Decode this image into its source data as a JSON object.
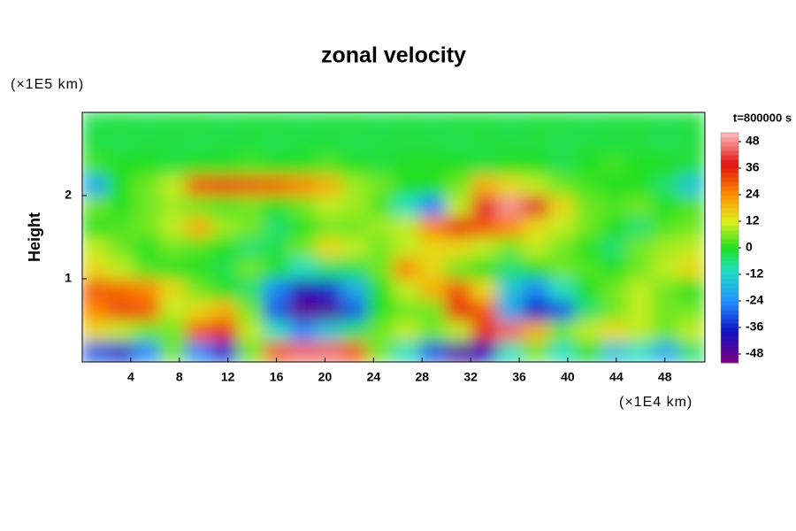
{
  "chart_data": {
    "type": "heatmap",
    "title": "zonal velocity",
    "y_unit": "(×1E5 km)",
    "x_unit": "(×1E4 km)",
    "ylabel": "Height",
    "time_label": "t=800000 s",
    "xlim": [
      0,
      51.3
    ],
    "ylim": [
      0,
      3
    ],
    "xticks": [
      4,
      8,
      12,
      16,
      20,
      24,
      28,
      32,
      36,
      40,
      44,
      48
    ],
    "yticks": [
      1,
      2
    ],
    "clim": [
      -52,
      52
    ],
    "cticks": [
      -48,
      -36,
      -24,
      -12,
      0,
      12,
      24,
      36,
      48
    ],
    "colormap": [
      [
        "#800080",
        -52
      ],
      [
        "#1010c0",
        -38
      ],
      [
        "#2090ff",
        -24
      ],
      [
        "#20e0c0",
        -10
      ],
      [
        "#20e020",
        0
      ],
      [
        "#e0f020",
        12
      ],
      [
        "#ff9000",
        24
      ],
      [
        "#e01010",
        38
      ],
      [
        "#ffc0c0",
        52
      ]
    ],
    "x": [
      1.07,
      3.21,
      5.34,
      7.48,
      9.62,
      11.76,
      13.89,
      16.03,
      18.17,
      20.31,
      22.44,
      24.58,
      26.72,
      28.86,
      30.99,
      33.13,
      35.27,
      37.41,
      39.54,
      41.68,
      43.82,
      45.96,
      48.09,
      50.23
    ],
    "y": [
      0.125,
      0.375,
      0.625,
      0.875,
      1.125,
      1.375,
      1.625,
      1.875,
      2.125,
      2.375,
      2.625,
      2.875
    ],
    "z": [
      [
        -30,
        -35,
        -25,
        5,
        -25,
        -35,
        5,
        30,
        45,
        45,
        30,
        5,
        -10,
        -30,
        -45,
        -40,
        -10,
        5,
        -10,
        0,
        -15,
        -10,
        -20,
        -5
      ],
      [
        15,
        10,
        5,
        5,
        30,
        35,
        10,
        -10,
        -25,
        -15,
        -5,
        5,
        10,
        5,
        10,
        35,
        45,
        20,
        5,
        10,
        15,
        10,
        5,
        10
      ],
      [
        25,
        32,
        30,
        10,
        15,
        20,
        5,
        -30,
        -48,
        -46,
        -30,
        0,
        5,
        5,
        35,
        30,
        -20,
        -38,
        -30,
        -5,
        5,
        10,
        5,
        5
      ],
      [
        30,
        28,
        25,
        15,
        5,
        0,
        -5,
        -25,
        -40,
        -35,
        -20,
        0,
        10,
        20,
        30,
        15,
        -15,
        -25,
        -10,
        0,
        5,
        10,
        5,
        0
      ],
      [
        15,
        10,
        3,
        0,
        0,
        -3,
        5,
        0,
        -10,
        -5,
        -3,
        5,
        25,
        15,
        5,
        0,
        -5,
        0,
        5,
        3,
        0,
        5,
        10,
        15
      ],
      [
        10,
        5,
        0,
        5,
        3,
        0,
        -5,
        -3,
        5,
        15,
        10,
        5,
        10,
        15,
        15,
        10,
        5,
        10,
        5,
        0,
        -5,
        5,
        8,
        10
      ],
      [
        0,
        3,
        5,
        10,
        20,
        8,
        5,
        -5,
        0,
        5,
        5,
        8,
        10,
        25,
        35,
        30,
        25,
        15,
        10,
        5,
        0,
        -5,
        3,
        5
      ],
      [
        5,
        0,
        5,
        8,
        5,
        3,
        5,
        0,
        5,
        10,
        8,
        3,
        -10,
        -25,
        10,
        40,
        48,
        40,
        15,
        5,
        3,
        5,
        0,
        3
      ],
      [
        -20,
        0,
        5,
        10,
        30,
        32,
        30,
        28,
        25,
        20,
        8,
        5,
        0,
        0,
        5,
        20,
        15,
        10,
        5,
        2,
        0,
        0,
        -5,
        -15
      ],
      [
        2,
        0,
        0,
        -2,
        0,
        0,
        2,
        0,
        0,
        3,
        0,
        -2,
        0,
        0,
        0,
        -2,
        0,
        0,
        -3,
        0,
        2,
        0,
        0,
        -2
      ],
      [
        -2,
        -3,
        -2,
        -2,
        -3,
        -2,
        -2,
        -3,
        -2,
        -2,
        -3,
        -2,
        -2,
        -2,
        -3,
        -2,
        -2,
        -2,
        -3,
        -2,
        -2,
        -2,
        -3,
        -2
      ],
      [
        -3,
        -2,
        -3,
        -2,
        -2,
        -3,
        -2,
        -2,
        -3,
        -2,
        -2,
        -3,
        -2,
        -3,
        -2,
        -2,
        -3,
        -2,
        -2,
        -3,
        -2,
        -2,
        -3,
        -2
      ]
    ]
  }
}
